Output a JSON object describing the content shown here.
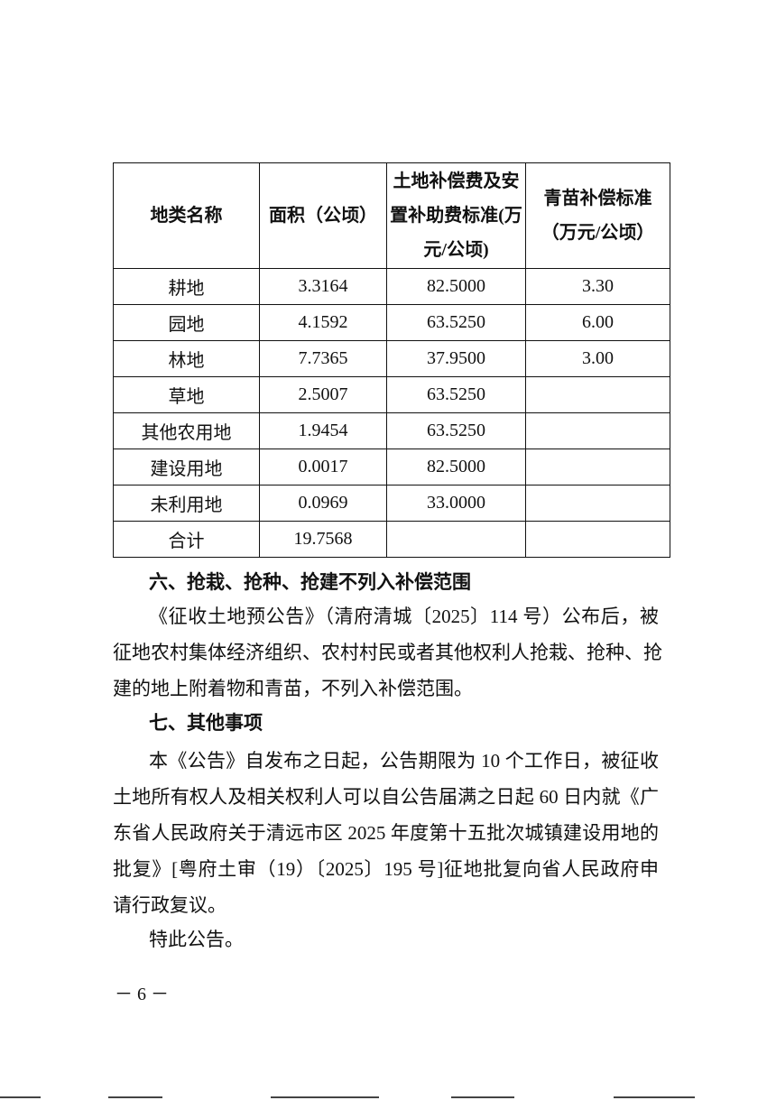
{
  "table": {
    "headers": [
      "地类名称",
      "面积（公顷）",
      "土地补偿费及安置补助费标准(万元/公顷)",
      "青苗补偿标准（万元/公顷）"
    ],
    "rows": [
      [
        "耕地",
        "3.3164",
        "82.5000",
        "3.30"
      ],
      [
        "园地",
        "4.1592",
        "63.5250",
        "6.00"
      ],
      [
        "林地",
        "7.7365",
        "37.9500",
        "3.00"
      ],
      [
        "草地",
        "2.5007",
        "63.5250",
        ""
      ],
      [
        "其他农用地",
        "1.9454",
        "63.5250",
        ""
      ],
      [
        "建设用地",
        "0.0017",
        "82.5000",
        ""
      ],
      [
        "未利用地",
        "0.0969",
        "33.0000",
        ""
      ],
      [
        "合计",
        "19.7568",
        "",
        ""
      ]
    ]
  },
  "section6": {
    "heading": "六、抢栽、抢种、抢建不列入补偿范围",
    "lines": [
      "《征收土地预公告》（清府清城〔2025〕114 号）公布后，被",
      "征地农村集体经济组织、农村村民或者其他权利人抢栽、抢种、抢",
      "建的地上附着物和青苗，不列入补偿范围。"
    ]
  },
  "section7": {
    "heading": "七、其他事项",
    "lines": [
      "本《公告》自发布之日起，公告期限为 10 个工作日，被征收",
      "土地所有权人及相关权利人可以自公告届满之日起 60 日内就《广",
      "东省人民政府关于清远市区 2025 年度第十五批次城镇建设用地的",
      "批复》[粤府土审（19）〔2025〕195 号]征地批复向省人民政府申",
      "请行政复议。"
    ]
  },
  "closing": "特此公告。",
  "page_number": "－ 6 －"
}
